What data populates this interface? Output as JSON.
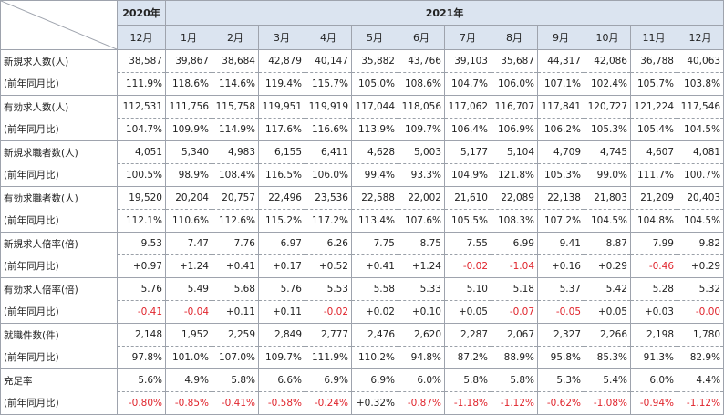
{
  "header": {
    "year_2020": "2020年",
    "year_2021": "2021年",
    "months": [
      "12月",
      "1月",
      "2月",
      "3月",
      "4月",
      "5月",
      "6月",
      "7月",
      "8月",
      "9月",
      "10月",
      "11月",
      "12月"
    ]
  },
  "rows": [
    {
      "label": "新規求人数(人)",
      "sub": "(前年同月比)",
      "values": [
        "38,587",
        "39,867",
        "38,684",
        "42,879",
        "40,147",
        "35,882",
        "43,766",
        "39,103",
        "35,687",
        "44,317",
        "42,086",
        "36,788",
        "40,063"
      ],
      "changes": [
        "111.9%",
        "118.6%",
        "114.6%",
        "119.4%",
        "115.7%",
        "105.0%",
        "108.6%",
        "104.7%",
        "106.0%",
        "107.1%",
        "102.4%",
        "105.7%",
        "103.8%"
      ]
    },
    {
      "label": "有効求人数(人)",
      "sub": "(前年同月比)",
      "values": [
        "112,531",
        "111,756",
        "115,758",
        "119,951",
        "119,919",
        "117,044",
        "118,056",
        "117,062",
        "116,707",
        "117,841",
        "120,727",
        "121,224",
        "117,546"
      ],
      "changes": [
        "104.7%",
        "109.9%",
        "114.9%",
        "117.6%",
        "116.6%",
        "113.9%",
        "109.7%",
        "106.4%",
        "106.9%",
        "106.2%",
        "105.3%",
        "105.4%",
        "104.5%"
      ]
    },
    {
      "label": "新規求職者数(人)",
      "sub": "(前年同月比)",
      "values": [
        "4,051",
        "5,340",
        "4,983",
        "6,155",
        "6,411",
        "4,628",
        "5,003",
        "5,177",
        "5,104",
        "4,709",
        "4,745",
        "4,607",
        "4,081"
      ],
      "changes": [
        "100.5%",
        "98.9%",
        "108.4%",
        "116.5%",
        "106.0%",
        "99.4%",
        "93.3%",
        "104.9%",
        "121.8%",
        "105.3%",
        "99.0%",
        "111.7%",
        "100.7%"
      ]
    },
    {
      "label": "有効求職者数(人)",
      "sub": "(前年同月比)",
      "values": [
        "19,520",
        "20,204",
        "20,757",
        "22,496",
        "23,536",
        "22,588",
        "22,002",
        "21,610",
        "22,089",
        "22,138",
        "21,803",
        "21,209",
        "20,403"
      ],
      "changes": [
        "112.1%",
        "110.6%",
        "112.6%",
        "115.2%",
        "117.2%",
        "113.4%",
        "107.6%",
        "105.5%",
        "108.3%",
        "107.2%",
        "104.5%",
        "104.8%",
        "104.5%"
      ]
    },
    {
      "label": "新規求人倍率(倍)",
      "sub": "(前年同月比)",
      "values": [
        "9.53",
        "7.47",
        "7.76",
        "6.97",
        "6.26",
        "7.75",
        "8.75",
        "7.55",
        "6.99",
        "9.41",
        "8.87",
        "7.99",
        "9.82"
      ],
      "changes": [
        "+0.97",
        "+1.24",
        "+0.41",
        "+0.17",
        "+0.52",
        "+0.41",
        "+1.24",
        "-0.02",
        "-1.04",
        "+0.16",
        "+0.29",
        "-0.46",
        "+0.29"
      ]
    },
    {
      "label": "有効求人倍率(倍)",
      "sub": "(前年同月比)",
      "values": [
        "5.76",
        "5.49",
        "5.68",
        "5.76",
        "5.53",
        "5.58",
        "5.33",
        "5.10",
        "5.18",
        "5.37",
        "5.42",
        "5.28",
        "5.32"
      ],
      "changes": [
        "-0.41",
        "-0.04",
        "+0.11",
        "+0.11",
        "-0.02",
        "+0.02",
        "+0.10",
        "+0.05",
        "-0.07",
        "-0.05",
        "+0.05",
        "+0.03",
        "-0.00"
      ]
    },
    {
      "label": "就職件数(件)",
      "sub": "(前年同月比)",
      "values": [
        "2,148",
        "1,952",
        "2,259",
        "2,849",
        "2,777",
        "2,476",
        "2,620",
        "2,287",
        "2,067",
        "2,327",
        "2,266",
        "2,198",
        "1,780"
      ],
      "changes": [
        "97.8%",
        "101.0%",
        "107.0%",
        "109.7%",
        "111.9%",
        "110.2%",
        "94.8%",
        "87.2%",
        "88.9%",
        "95.8%",
        "85.3%",
        "91.3%",
        "82.9%"
      ]
    },
    {
      "label": "充足率",
      "sub": "(前年同月比)",
      "values": [
        "5.6%",
        "4.9%",
        "5.8%",
        "6.6%",
        "6.9%",
        "6.9%",
        "6.0%",
        "5.8%",
        "5.8%",
        "5.3%",
        "5.4%",
        "6.0%",
        "4.4%"
      ],
      "changes": [
        "-0.80%",
        "-0.85%",
        "-0.41%",
        "-0.58%",
        "-0.24%",
        "+0.32%",
        "-0.87%",
        "-1.18%",
        "-1.12%",
        "-0.62%",
        "-1.08%",
        "-0.94%",
        "-1.12%"
      ]
    }
  ],
  "colors": {
    "header_bg": "#dbe4f0",
    "negative": "#e0242c",
    "grid": "#9ea3ad"
  }
}
